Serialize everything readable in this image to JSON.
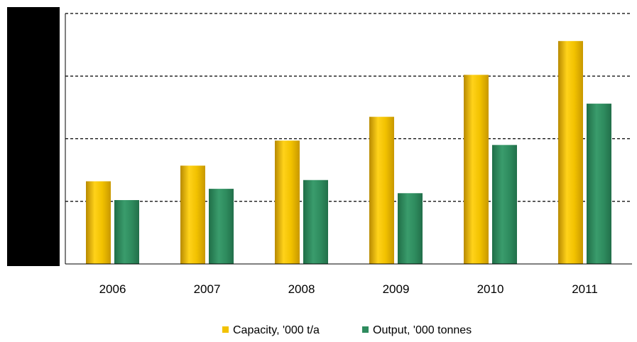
{
  "chart_data": {
    "type": "bar",
    "title": "",
    "xlabel": "",
    "ylabel": "",
    "categories": [
      "2006",
      "2007",
      "2008",
      "2009",
      "2010",
      "2011"
    ],
    "series": [
      {
        "name": "Capacity, '000 t/a",
        "color": "#f2c200",
        "values": [
          1.32,
          1.57,
          1.97,
          2.35,
          3.02,
          3.56
        ]
      },
      {
        "name": "Output, '000 tonnes",
        "color": "#2e8b5e",
        "values": [
          1.02,
          1.2,
          1.34,
          1.13,
          1.9,
          2.56
        ]
      }
    ],
    "ylim": [
      0,
      4
    ],
    "ytick_values": [
      0,
      1,
      2,
      3,
      4
    ],
    "grid": true,
    "grid_style": "dashed",
    "legend_position": "bottom-center"
  }
}
